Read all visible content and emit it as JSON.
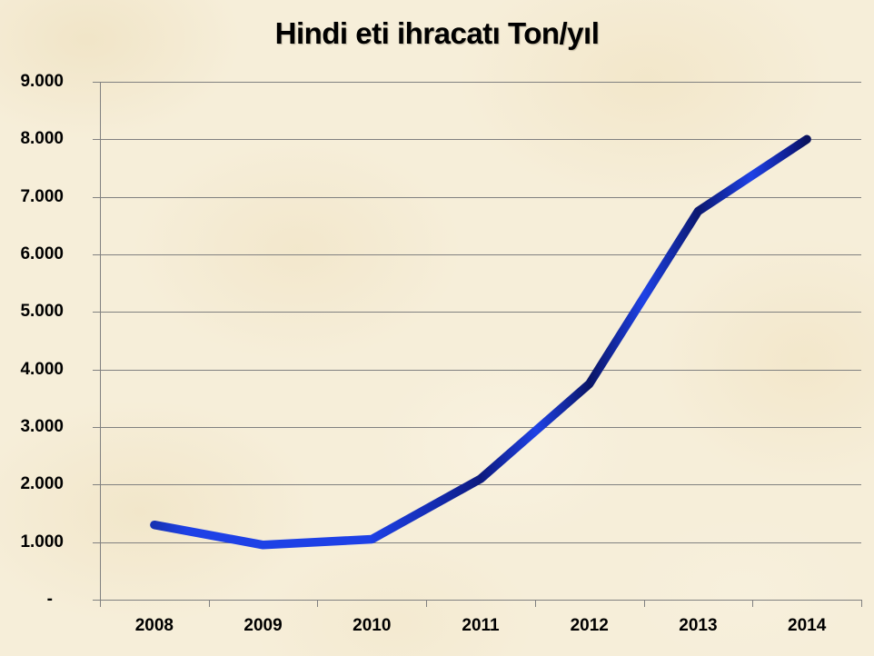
{
  "slide": {
    "background_color": "#f6eed9"
  },
  "chart_data": {
    "type": "line",
    "title": "Hindi eti ihracatı Ton/yıl",
    "categories": [
      "2008",
      "2009",
      "2010",
      "2011",
      "2012",
      "2013",
      "2014"
    ],
    "series": [
      {
        "name": "Hindi eti ihracatı (Ton/yıl)",
        "values": [
          1300,
          950,
          1050,
          2100,
          3750,
          6750,
          8000
        ]
      }
    ],
    "xlabel": "",
    "ylabel": "",
    "ylim": [
      0,
      9000
    ],
    "ytick_step": 1000,
    "ytick_labels": [
      "-",
      "1.000",
      "2.000",
      "3.000",
      "4.000",
      "5.000",
      "6.000",
      "7.000",
      "8.000",
      "9.000"
    ],
    "grid": true,
    "legend_position": "none",
    "line_color_bright": "#1e41e6",
    "line_color_dark": "#0a1566",
    "line_color_cap": "#1733b4",
    "grid_color": "#808080",
    "axis_color": "#808080",
    "text_color": "#000000"
  }
}
